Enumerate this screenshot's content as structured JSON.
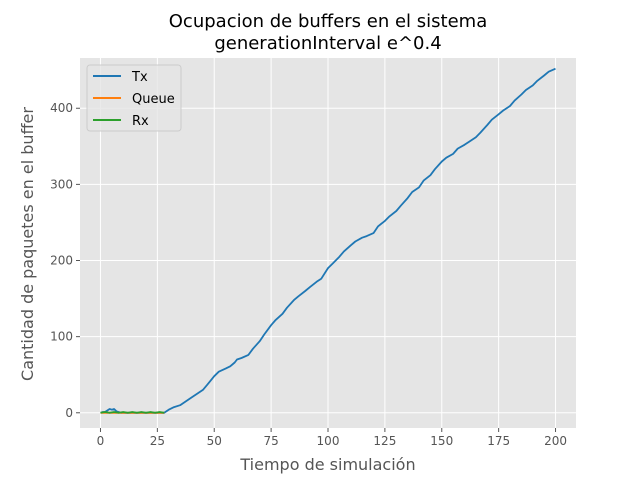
{
  "chart_data": {
    "type": "line",
    "title_line1": "Ocupacion de buffers en el sistema",
    "title_line2": "generationInterval e^0.4",
    "xlabel": "Tiempo de simulación",
    "ylabel": "Cantidad de paquetes en el buffer",
    "xlim": [
      -9,
      209
    ],
    "ylim": [
      -20,
      466
    ],
    "xticks": [
      0,
      25,
      50,
      75,
      100,
      125,
      150,
      175,
      200
    ],
    "yticks": [
      0,
      100,
      200,
      300,
      400
    ],
    "grid": true,
    "legend_position": "top-left",
    "colors": {
      "background": "#e5e5e5",
      "grid": "#ffffff",
      "axis_text": "#555555"
    },
    "series": [
      {
        "name": "Tx",
        "color": "#1f77b4",
        "points": [
          [
            0,
            0
          ],
          [
            1,
            1
          ],
          [
            2,
            1
          ],
          [
            3,
            3
          ],
          [
            4,
            5
          ],
          [
            5,
            4
          ],
          [
            6,
            5
          ],
          [
            7,
            2
          ],
          [
            8,
            1
          ],
          [
            9,
            0
          ],
          [
            12,
            0
          ],
          [
            20,
            0
          ],
          [
            28,
            0
          ],
          [
            30,
            4
          ],
          [
            32,
            7
          ],
          [
            35,
            10
          ],
          [
            37,
            14
          ],
          [
            40,
            20
          ],
          [
            42,
            24
          ],
          [
            45,
            30
          ],
          [
            47,
            37
          ],
          [
            50,
            48
          ],
          [
            52,
            54
          ],
          [
            55,
            58
          ],
          [
            57,
            61
          ],
          [
            59,
            66
          ],
          [
            60,
            70
          ],
          [
            62,
            72
          ],
          [
            65,
            76
          ],
          [
            67,
            84
          ],
          [
            70,
            94
          ],
          [
            72,
            103
          ],
          [
            75,
            115
          ],
          [
            77,
            122
          ],
          [
            80,
            130
          ],
          [
            82,
            138
          ],
          [
            85,
            148
          ],
          [
            87,
            153
          ],
          [
            90,
            160
          ],
          [
            92,
            165
          ],
          [
            95,
            172
          ],
          [
            97,
            176
          ],
          [
            100,
            190
          ],
          [
            102,
            196
          ],
          [
            105,
            205
          ],
          [
            107,
            212
          ],
          [
            110,
            220
          ],
          [
            112,
            225
          ],
          [
            115,
            230
          ],
          [
            117,
            232
          ],
          [
            120,
            236
          ],
          [
            122,
            245
          ],
          [
            125,
            252
          ],
          [
            127,
            258
          ],
          [
            130,
            265
          ],
          [
            132,
            272
          ],
          [
            135,
            282
          ],
          [
            137,
            290
          ],
          [
            140,
            296
          ],
          [
            142,
            305
          ],
          [
            145,
            312
          ],
          [
            147,
            320
          ],
          [
            150,
            330
          ],
          [
            152,
            335
          ],
          [
            155,
            340
          ],
          [
            157,
            347
          ],
          [
            160,
            352
          ],
          [
            162,
            356
          ],
          [
            165,
            362
          ],
          [
            167,
            368
          ],
          [
            170,
            378
          ],
          [
            172,
            385
          ],
          [
            175,
            392
          ],
          [
            177,
            397
          ],
          [
            180,
            403
          ],
          [
            182,
            410
          ],
          [
            185,
            418
          ],
          [
            187,
            424
          ],
          [
            190,
            430
          ],
          [
            192,
            436
          ],
          [
            195,
            443
          ],
          [
            197,
            448
          ],
          [
            200,
            452
          ]
        ]
      },
      {
        "name": "Queue",
        "color": "#ff7f0e",
        "points": [
          [
            0,
            0
          ],
          [
            5,
            0
          ],
          [
            10,
            0
          ],
          [
            15,
            0
          ],
          [
            20,
            0
          ],
          [
            25,
            0
          ],
          [
            28,
            0
          ]
        ]
      },
      {
        "name": "Rx",
        "color": "#2ca02c",
        "points": [
          [
            0,
            0
          ],
          [
            2,
            1
          ],
          [
            4,
            0
          ],
          [
            6,
            1
          ],
          [
            8,
            0
          ],
          [
            10,
            1
          ],
          [
            12,
            0
          ],
          [
            14,
            1
          ],
          [
            16,
            0
          ],
          [
            18,
            1
          ],
          [
            20,
            0
          ],
          [
            22,
            1
          ],
          [
            24,
            0
          ],
          [
            26,
            1
          ],
          [
            28,
            0
          ]
        ]
      }
    ]
  }
}
